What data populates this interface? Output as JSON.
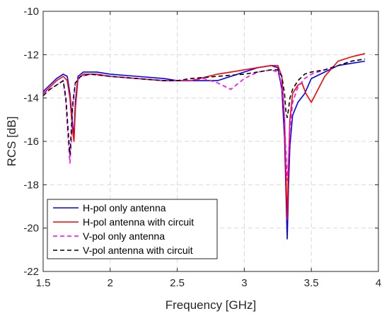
{
  "chart_data": {
    "type": "line",
    "xlabel": "Frequency [GHz]",
    "ylabel": "RCS [dB]",
    "xlim": [
      1.5,
      4.0
    ],
    "ylim": [
      -22,
      -10
    ],
    "xticks": [
      1.5,
      2,
      2.5,
      3,
      3.5,
      4
    ],
    "xtick_labels": [
      "1.5",
      "2",
      "2.5",
      "3",
      "3.5",
      "4"
    ],
    "yticks": [
      -22,
      -20,
      -18,
      -16,
      -14,
      -12,
      -10
    ],
    "ytick_labels": [
      "-22",
      "-20",
      "-18",
      "-16",
      "-14",
      "-12",
      "-10"
    ],
    "grid": true,
    "legend_position": "bottom-left",
    "series": [
      {
        "name": "H-pol only antenna",
        "color": "#0000ff",
        "dash": "solid",
        "x": [
          1.5,
          1.55,
          1.6,
          1.65,
          1.68,
          1.7,
          1.72,
          1.73,
          1.74,
          1.76,
          1.8,
          1.9,
          2.0,
          2.2,
          2.4,
          2.5,
          2.6,
          2.8,
          2.9,
          3.0,
          3.1,
          3.2,
          3.25,
          3.28,
          3.3,
          3.31,
          3.32,
          3.33,
          3.34,
          3.36,
          3.4,
          3.45,
          3.5,
          3.6,
          3.7,
          3.8,
          3.9
        ],
        "y": [
          -13.7,
          -13.4,
          -13.1,
          -12.9,
          -13.0,
          -13.8,
          -15.2,
          -15.8,
          -14.2,
          -13.0,
          -12.8,
          -12.8,
          -12.9,
          -13.0,
          -13.1,
          -13.2,
          -13.2,
          -13.2,
          -13.0,
          -12.8,
          -12.6,
          -12.5,
          -12.6,
          -13.6,
          -15.8,
          -18.2,
          -20.5,
          -18.0,
          -16.2,
          -14.8,
          -14.2,
          -13.8,
          -13.1,
          -12.8,
          -12.5,
          -12.4,
          -12.3
        ]
      },
      {
        "name": "H-pol antenna with circuit",
        "color": "#ff0000",
        "dash": "solid",
        "x": [
          1.5,
          1.55,
          1.6,
          1.65,
          1.68,
          1.7,
          1.72,
          1.73,
          1.74,
          1.76,
          1.8,
          1.9,
          2.0,
          2.2,
          2.4,
          2.5,
          2.6,
          2.8,
          2.9,
          3.0,
          3.1,
          3.2,
          3.25,
          3.28,
          3.3,
          3.31,
          3.32,
          3.33,
          3.34,
          3.36,
          3.38,
          3.4,
          3.43,
          3.46,
          3.5,
          3.55,
          3.6,
          3.7,
          3.8,
          3.9
        ],
        "y": [
          -13.8,
          -13.5,
          -13.2,
          -13.0,
          -13.2,
          -14.0,
          -15.5,
          -16.0,
          -14.5,
          -13.1,
          -12.9,
          -12.9,
          -13.0,
          -13.1,
          -13.2,
          -13.2,
          -13.2,
          -12.9,
          -12.8,
          -12.7,
          -12.6,
          -12.5,
          -12.5,
          -13.0,
          -15.0,
          -17.5,
          -19.6,
          -17.0,
          -15.0,
          -13.8,
          -13.6,
          -13.4,
          -13.3,
          -13.8,
          -14.2,
          -13.6,
          -13.0,
          -12.3,
          -12.1,
          -11.95
        ]
      },
      {
        "name": "V-pol only antenna",
        "color": "#ff00ff",
        "dash": "dashed",
        "x": [
          1.5,
          1.55,
          1.6,
          1.65,
          1.67,
          1.69,
          1.7,
          1.71,
          1.72,
          1.74,
          1.78,
          1.85,
          2.0,
          2.2,
          2.4,
          2.5,
          2.6,
          2.7,
          2.8,
          2.9,
          3.0,
          3.1,
          3.2,
          3.25,
          3.28,
          3.3,
          3.31,
          3.32,
          3.33,
          3.34,
          3.36,
          3.4,
          3.45,
          3.5,
          3.6,
          3.7,
          3.8,
          3.9
        ],
        "y": [
          -13.8,
          -13.6,
          -13.4,
          -13.2,
          -14.2,
          -16.2,
          -17.0,
          -16.0,
          -14.5,
          -13.3,
          -13.0,
          -12.9,
          -13.0,
          -13.1,
          -13.2,
          -13.2,
          -13.2,
          -13.1,
          -13.3,
          -13.6,
          -13.1,
          -12.8,
          -12.7,
          -12.8,
          -13.4,
          -15.0,
          -16.5,
          -17.8,
          -16.8,
          -15.5,
          -14.2,
          -13.5,
          -13.1,
          -12.9,
          -12.7,
          -12.5,
          -12.3,
          -12.2
        ]
      },
      {
        "name": "V-pol antenna with circuit",
        "color": "#000000",
        "dash": "dashed",
        "x": [
          1.5,
          1.55,
          1.6,
          1.65,
          1.67,
          1.69,
          1.7,
          1.71,
          1.72,
          1.74,
          1.78,
          1.85,
          2.0,
          2.2,
          2.4,
          2.5,
          2.6,
          2.8,
          3.0,
          3.1,
          3.2,
          3.25,
          3.28,
          3.3,
          3.31,
          3.32,
          3.33,
          3.34,
          3.36,
          3.4,
          3.45,
          3.5,
          3.6,
          3.7,
          3.8,
          3.9
        ],
        "y": [
          -13.9,
          -13.6,
          -13.4,
          -13.2,
          -14.0,
          -15.8,
          -16.6,
          -15.5,
          -14.3,
          -13.3,
          -13.0,
          -12.9,
          -13.0,
          -13.1,
          -13.2,
          -13.2,
          -13.1,
          -13.0,
          -12.9,
          -12.8,
          -12.7,
          -12.7,
          -13.0,
          -13.8,
          -14.6,
          -14.9,
          -14.5,
          -14.0,
          -13.6,
          -13.2,
          -12.9,
          -12.8,
          -12.7,
          -12.5,
          -12.3,
          -12.2
        ]
      }
    ]
  }
}
